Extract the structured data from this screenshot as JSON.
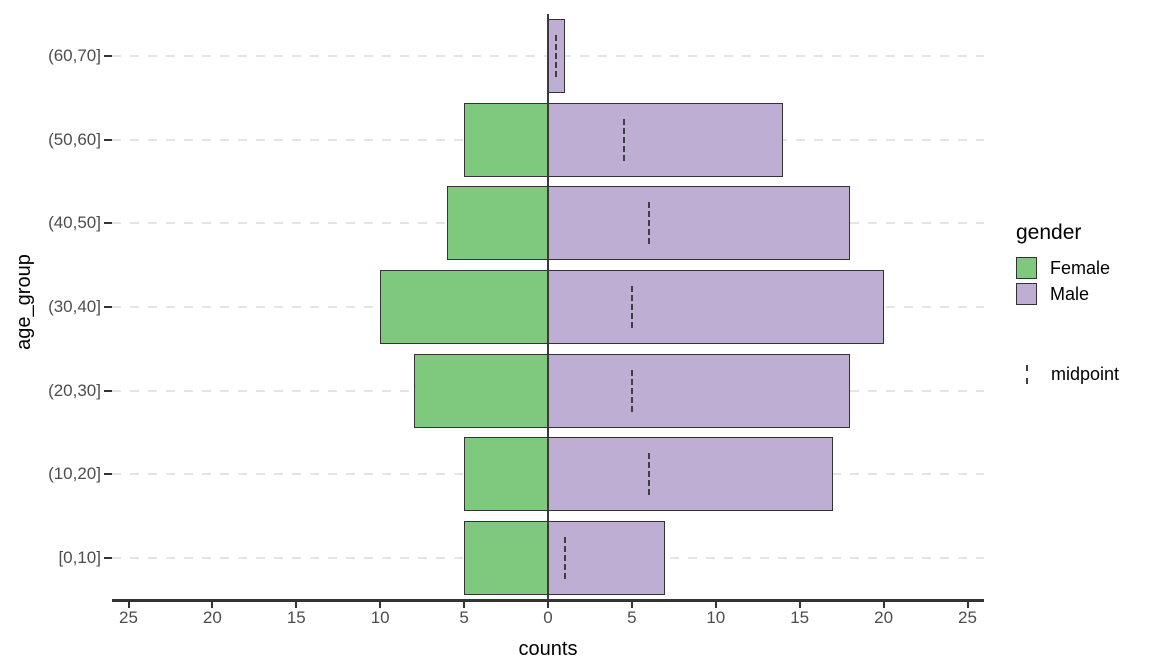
{
  "chart_data": {
    "type": "bar",
    "subtype": "population-pyramid",
    "title": "",
    "xlabel": "counts",
    "ylabel": "age_group",
    "categories": [
      "(60,70]",
      "(50,60]",
      "(40,50]",
      "(30,40]",
      "(20,30]",
      "(10,20]",
      "[0,10]"
    ],
    "series": [
      {
        "name": "Female",
        "side": "left",
        "color": "#7FC97F",
        "values": [
          0,
          5,
          6,
          10,
          8,
          5,
          5
        ]
      },
      {
        "name": "Male",
        "side": "right",
        "color": "#BEAED4",
        "values": [
          1,
          14,
          18,
          20,
          18,
          17,
          7
        ]
      }
    ],
    "midpoint_series": {
      "name": "midpoint",
      "symbol": "dashed-vertical-segment",
      "values": [
        0.5,
        4.5,
        6,
        5,
        5,
        6,
        1
      ]
    },
    "x_axis": {
      "tick_values": [
        -25,
        -20,
        -15,
        -10,
        -5,
        0,
        5,
        10,
        15,
        20,
        25
      ],
      "tick_labels": [
        "25",
        "20",
        "15",
        "10",
        "5",
        "0",
        "5",
        "10",
        "15",
        "20",
        "25"
      ],
      "range": [
        -26,
        26
      ]
    },
    "grid": {
      "horizontal": "dashed",
      "color": "#e4e4e4"
    },
    "zero_line": true,
    "legend": {
      "position": "right",
      "title": "gender",
      "entries": [
        {
          "label": "Female",
          "color": "#7FC97F"
        },
        {
          "label": "Male",
          "color": "#BEAED4"
        }
      ],
      "secondary": [
        {
          "label": "midpoint",
          "symbol": "dashed-vertical-line"
        }
      ]
    }
  },
  "colors": {
    "background": "#ffffff",
    "female_fill": "#7FC97F",
    "male_fill": "#BEAED4",
    "bar_border": "#333333",
    "grid_line": "#e4e4e4",
    "axis_line": "#333333",
    "tick_label": "#4d4d4d",
    "axis_title": "#000000",
    "midpoint_line": "#3f3f3f"
  }
}
